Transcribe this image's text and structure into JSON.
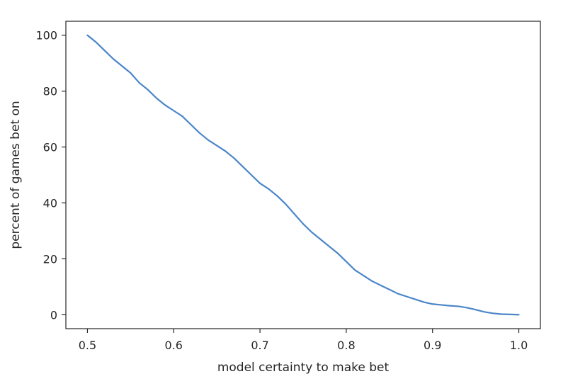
{
  "chart_data": {
    "type": "line",
    "title": "",
    "xlabel": "model certainty to make bet",
    "ylabel": "percent of games bet on",
    "xlim": [
      0.475,
      1.025
    ],
    "ylim": [
      -5,
      105
    ],
    "xticks": [
      0.5,
      0.6,
      0.7,
      0.8,
      0.9,
      1.0
    ],
    "xtick_labels": [
      "0.5",
      "0.6",
      "0.7",
      "0.8",
      "0.9",
      "1.0"
    ],
    "yticks": [
      0,
      20,
      40,
      60,
      80,
      100
    ],
    "ytick_labels": [
      "0",
      "20",
      "40",
      "60",
      "80",
      "100"
    ],
    "grid": false,
    "legend": false,
    "colors": {
      "line": "#4a86c8",
      "axes": "#262626",
      "background": "#ffffff"
    },
    "series": [
      {
        "x": [
          0.5,
          0.51,
          0.52,
          0.53,
          0.54,
          0.55,
          0.56,
          0.57,
          0.58,
          0.59,
          0.6,
          0.61,
          0.62,
          0.63,
          0.64,
          0.65,
          0.66,
          0.67,
          0.68,
          0.69,
          0.7,
          0.71,
          0.72,
          0.73,
          0.74,
          0.75,
          0.76,
          0.77,
          0.78,
          0.79,
          0.8,
          0.81,
          0.82,
          0.83,
          0.84,
          0.85,
          0.86,
          0.87,
          0.88,
          0.89,
          0.9,
          0.91,
          0.92,
          0.93,
          0.94,
          0.95,
          0.96,
          0.97,
          0.98,
          0.99,
          1.0
        ],
        "values": [
          100,
          97.5,
          94.5,
          91.5,
          89,
          86.5,
          83,
          80.5,
          77.5,
          75,
          73,
          71,
          68,
          65,
          62.5,
          60.5,
          58.5,
          56,
          53,
          50,
          47,
          45,
          42.5,
          39.5,
          36,
          32.5,
          29.5,
          27,
          24.5,
          22,
          19,
          16,
          14,
          12,
          10.5,
          9,
          7.5,
          6.5,
          5.5,
          4.5,
          3.8,
          3.5,
          3.2,
          3,
          2.5,
          1.8,
          1,
          0.5,
          0.2,
          0.1,
          0
        ]
      }
    ]
  }
}
